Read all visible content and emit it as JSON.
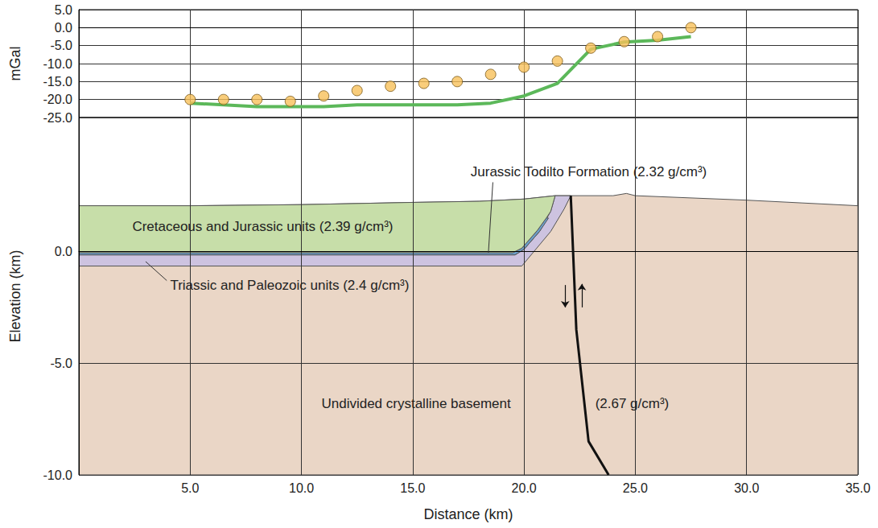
{
  "chart_data": [
    {
      "type": "line",
      "ylabel": "mGal",
      "xlim": [
        0,
        35
      ],
      "xticks": [
        5,
        10,
        15,
        20,
        25,
        30,
        35
      ],
      "ylim": [
        -25,
        5
      ],
      "yticks": [
        {
          "value": -25,
          "label": "-25.0"
        },
        {
          "value": -20,
          "label": "-20.0"
        },
        {
          "value": -15,
          "label": "-15.0"
        },
        {
          "value": -10,
          "label": "-10.0"
        },
        {
          "value": -5,
          "label": "-5.0"
        },
        {
          "value": 0,
          "label": "0.0"
        },
        {
          "value": 5,
          "label": "5.0"
        }
      ],
      "grid": true,
      "tick_labels": "y",
      "x": [
        5.0,
        6.5,
        8.0,
        9.5,
        11.0,
        12.5,
        14.0,
        15.5,
        17.0,
        18.5,
        20.0,
        21.5,
        23.0,
        24.5,
        26.0,
        27.5
      ],
      "series": [
        {
          "type": "scatter",
          "color": "#f7c15a",
          "marker": "circle",
          "values": [
            -20,
            -20,
            -20,
            -20.5,
            -19,
            -17.5,
            -16.3,
            -15.5,
            -15,
            -13,
            -11,
            -9.3,
            -5.7,
            -3.9,
            -2.5,
            0
          ]
        },
        {
          "type": "line",
          "color": "#5cb85a",
          "line_style": "solid",
          "values": [
            -21,
            -21.5,
            -22,
            -22,
            -22,
            -21.5,
            -21.5,
            -21.5,
            -21.5,
            -21,
            -19,
            -15.5,
            -6,
            -4,
            -3.5,
            -2.5
          ]
        }
      ]
    },
    {
      "type": "polygon",
      "xlabel": "Distance (km)",
      "ylabel": "Elevation (km)",
      "xlim": [
        0,
        35
      ],
      "xticks": [
        {
          "value": 5,
          "label": "5.0"
        },
        {
          "value": 10,
          "label": "10.0"
        },
        {
          "value": 15,
          "label": "15.0"
        },
        {
          "value": 20,
          "label": "20.0"
        },
        {
          "value": 25,
          "label": "25.0"
        },
        {
          "value": 30,
          "label": "30.0"
        },
        {
          "value": 35,
          "label": "35.0"
        }
      ],
      "ylim": [
        -10,
        6
      ],
      "yticks": [
        {
          "value": -10,
          "label": "-10.0"
        },
        {
          "value": -5,
          "label": "-5.0"
        },
        {
          "value": 0,
          "label": "0.0"
        }
      ],
      "grid": true,
      "series": [
        {
          "type": "polygon",
          "color": "#ead6c6",
          "values": [
            [
              0,
              -10
            ],
            [
              35,
              -10
            ],
            [
              35,
              2.05
            ],
            [
              30,
              2.3
            ],
            [
              25,
              2.5
            ],
            [
              24.6,
              2.6
            ],
            [
              24,
              2.5
            ],
            [
              22.1,
              2.5
            ],
            [
              21.4,
              2.5
            ],
            [
              20,
              2.35
            ],
            [
              18,
              2.25
            ],
            [
              15,
              2.2
            ],
            [
              10,
              2.1
            ],
            [
              5,
              2.05
            ],
            [
              0,
              2.05
            ]
          ]
        },
        {
          "type": "polygon",
          "color": "#cdc3e0",
          "values": [
            [
              0,
              -0.65
            ],
            [
              19.9,
              -0.65
            ],
            [
              21.2,
              0.9
            ],
            [
              21.8,
              1.9
            ],
            [
              22.1,
              2.5
            ],
            [
              21.4,
              2.5
            ],
            [
              21.2,
              1.8
            ],
            [
              20.7,
              0.9
            ],
            [
              20.0,
              0.1
            ],
            [
              19.6,
              -0.15
            ],
            [
              0,
              -0.15
            ]
          ]
        },
        {
          "type": "polygon",
          "color": "#6b9fcb",
          "values": [
            [
              0,
              -0.15
            ],
            [
              19.6,
              -0.15
            ],
            [
              20.0,
              0.1
            ],
            [
              20.7,
              0.9
            ],
            [
              21.1,
              1.5
            ],
            [
              21.0,
              1.5
            ],
            [
              20.6,
              0.95
            ],
            [
              19.9,
              0.15
            ],
            [
              19.5,
              -0.05
            ],
            [
              0,
              -0.05
            ]
          ]
        },
        {
          "type": "polygon",
          "color": "#c7dea9",
          "values": [
            [
              0,
              -0.05
            ],
            [
              19.5,
              -0.05
            ],
            [
              19.9,
              0.15
            ],
            [
              20.6,
              0.95
            ],
            [
              21.0,
              1.5
            ],
            [
              21.2,
              1.8
            ],
            [
              21.4,
              2.5
            ],
            [
              20,
              2.35
            ],
            [
              18,
              2.25
            ],
            [
              15,
              2.2
            ],
            [
              10,
              2.1
            ],
            [
              5,
              2.05
            ],
            [
              0,
              2.05
            ]
          ]
        },
        {
          "type": "line",
          "color": "#111111",
          "line_style": "solid",
          "values": [
            [
              22.1,
              2.5
            ],
            [
              22.35,
              -3.5
            ],
            [
              22.9,
              -8.5
            ],
            [
              23.8,
              -10
            ]
          ]
        }
      ],
      "annotations": [
        {
          "text": "Jurassic Todilto Formation (2.32 g/cm³)"
        },
        {
          "text": "Cretaceous and Jurassic units (2.39 g/cm³)"
        },
        {
          "text": "Triassic and Paleozoic units (2.4 g/cm³)"
        },
        {
          "text": "Undivided crystalline basement"
        },
        {
          "text": "(2.67 g/cm³)"
        }
      ]
    }
  ]
}
